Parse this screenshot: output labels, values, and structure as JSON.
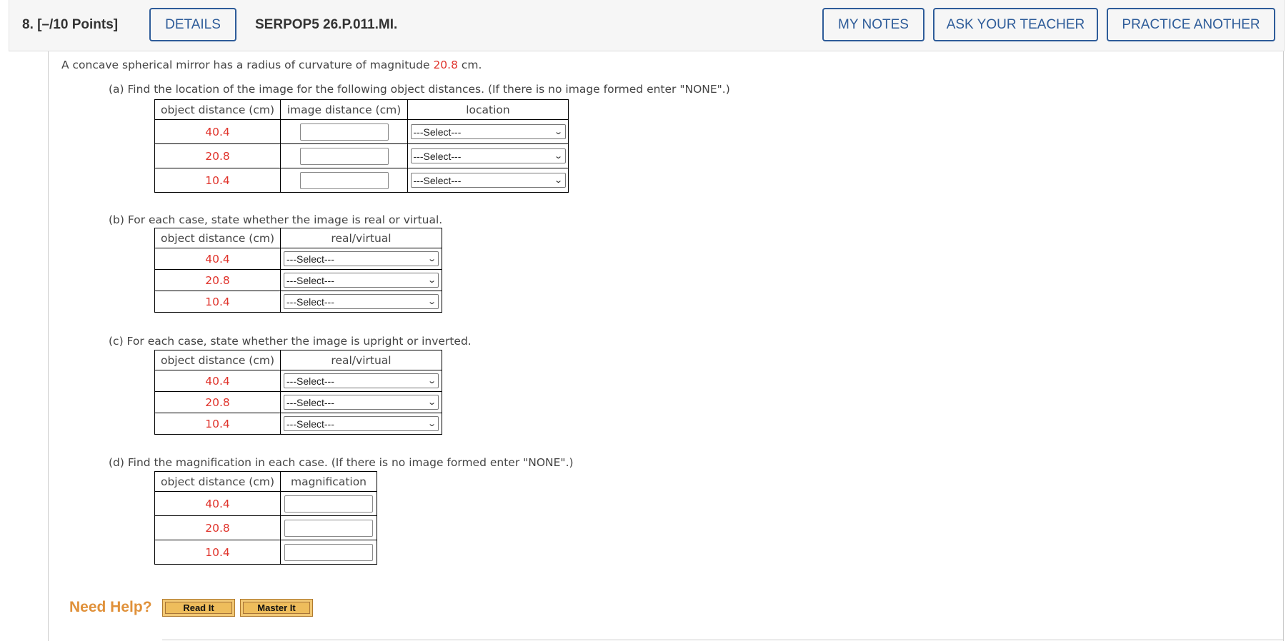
{
  "header": {
    "question_number": "8. [–/10 Points]",
    "details_label": "DETAILS",
    "problem_code": "SERPOP5 26.P.011.MI.",
    "my_notes_label": "MY NOTES",
    "ask_teacher_label": "ASK YOUR TEACHER",
    "practice_another_label": "PRACTICE ANOTHER"
  },
  "problem": {
    "intro_before": "A concave spherical mirror has a radius of curvature of magnitude ",
    "radius": "20.8",
    "intro_after": " cm."
  },
  "part_a": {
    "prompt": "(a) Find the location of the image for the following object distances. (If there is no image formed enter \"NONE\".)",
    "headers": [
      "object distance (cm)",
      "image distance (cm)",
      "location"
    ],
    "rows": [
      {
        "object_distance": "40.4",
        "image_distance": "",
        "location": "---Select---"
      },
      {
        "object_distance": "20.8",
        "image_distance": "",
        "location": "---Select---"
      },
      {
        "object_distance": "10.4",
        "image_distance": "",
        "location": "---Select---"
      }
    ]
  },
  "part_b": {
    "prompt": "(b) For each case, state whether the image is real or virtual.",
    "headers": [
      "object distance (cm)",
      "real/virtual"
    ],
    "rows": [
      {
        "object_distance": "40.4",
        "selection": "---Select---"
      },
      {
        "object_distance": "20.8",
        "selection": "---Select---"
      },
      {
        "object_distance": "10.4",
        "selection": "---Select---"
      }
    ]
  },
  "part_c": {
    "prompt": "(c) For each case, state whether the image is upright or inverted.",
    "headers": [
      "object distance (cm)",
      "real/virtual"
    ],
    "rows": [
      {
        "object_distance": "40.4",
        "selection": "---Select---"
      },
      {
        "object_distance": "20.8",
        "selection": "---Select---"
      },
      {
        "object_distance": "10.4",
        "selection": "---Select---"
      }
    ]
  },
  "part_d": {
    "prompt": "(d) Find the magnification in each case. (If there is no image formed enter \"NONE\".)",
    "headers": [
      "object distance (cm)",
      "magnification"
    ],
    "rows": [
      {
        "object_distance": "40.4",
        "magnification": ""
      },
      {
        "object_distance": "20.8",
        "magnification": ""
      },
      {
        "object_distance": "10.4",
        "magnification": ""
      }
    ]
  },
  "help": {
    "label": "Need Help?",
    "read_it": "Read It",
    "master_it": "Master It"
  },
  "colors": {
    "accent": "#2e5c99",
    "value_red": "#e0342c",
    "help_orange": "#e0913a"
  }
}
